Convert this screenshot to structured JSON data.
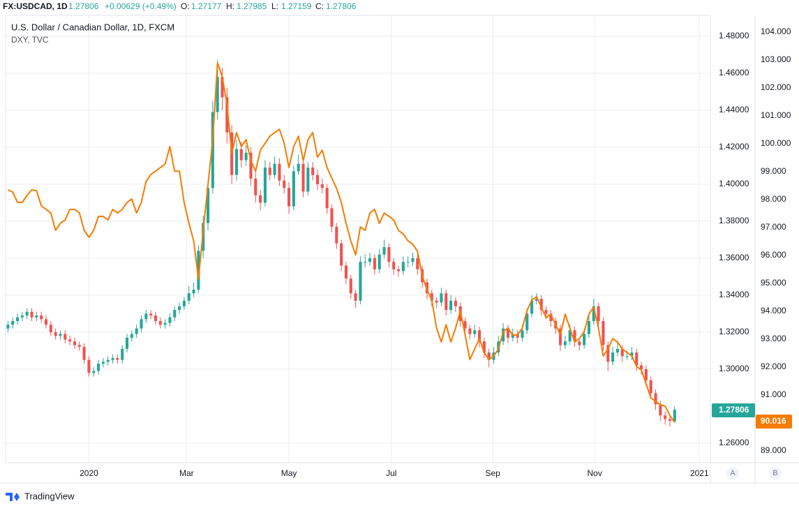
{
  "header": {
    "symbol": "FX:USDCAD, 1D",
    "change": "+0.00629 (+0.49%)",
    "ohlc_labels": [
      "O:",
      "H:",
      "L:",
      "C:"
    ]
  },
  "footer": {
    "brand": "TradingView",
    "scale_buttons": [
      "A",
      "B"
    ]
  },
  "chart_data": {
    "type": "candlestick",
    "title": "U.S. Dollar / Canadian Dollar, 1D, FXCM",
    "up_color": "#26a69a",
    "down_color": "#ef5350",
    "ohlc": [
      [
        1.322,
        1.326,
        1.32,
        1.324
      ],
      [
        1.324,
        1.328,
        1.322,
        1.326
      ],
      [
        1.326,
        1.33,
        1.324,
        1.328
      ],
      [
        1.328,
        1.331,
        1.326,
        1.329
      ],
      [
        1.329,
        1.333,
        1.327,
        1.331
      ],
      [
        1.331,
        1.333,
        1.326,
        1.328
      ],
      [
        1.328,
        1.331,
        1.326,
        1.329
      ],
      [
        1.329,
        1.331,
        1.325,
        1.327
      ],
      [
        1.327,
        1.329,
        1.322,
        1.324
      ],
      [
        1.324,
        1.326,
        1.318,
        1.32
      ],
      [
        1.32,
        1.322,
        1.316,
        1.318
      ],
      [
        1.318,
        1.321,
        1.316,
        1.319
      ],
      [
        1.319,
        1.321,
        1.314,
        1.316
      ],
      [
        1.316,
        1.318,
        1.313,
        1.315
      ],
      [
        1.315,
        1.317,
        1.311,
        1.313
      ],
      [
        1.313,
        1.315,
        1.31,
        1.312
      ],
      [
        1.312,
        1.314,
        1.303,
        1.305
      ],
      [
        1.305,
        1.307,
        1.296,
        1.298
      ],
      [
        1.298,
        1.301,
        1.296,
        1.299
      ],
      [
        1.299,
        1.305,
        1.297,
        1.303
      ],
      [
        1.303,
        1.306,
        1.301,
        1.304
      ],
      [
        1.304,
        1.307,
        1.302,
        1.305
      ],
      [
        1.305,
        1.308,
        1.303,
        1.306
      ],
      [
        1.306,
        1.308,
        1.303,
        1.305
      ],
      [
        1.305,
        1.313,
        1.303,
        1.311
      ],
      [
        1.311,
        1.319,
        1.309,
        1.317
      ],
      [
        1.317,
        1.321,
        1.315,
        1.319
      ],
      [
        1.319,
        1.324,
        1.317,
        1.322
      ],
      [
        1.322,
        1.329,
        1.32,
        1.327
      ],
      [
        1.327,
        1.332,
        1.325,
        1.33
      ],
      [
        1.33,
        1.332,
        1.327,
        1.329
      ],
      [
        1.329,
        1.331,
        1.324,
        1.326
      ],
      [
        1.326,
        1.328,
        1.322,
        1.324
      ],
      [
        1.324,
        1.327,
        1.322,
        1.325
      ],
      [
        1.325,
        1.33,
        1.323,
        1.328
      ],
      [
        1.328,
        1.334,
        1.326,
        1.332
      ],
      [
        1.332,
        1.336,
        1.33,
        1.334
      ],
      [
        1.334,
        1.339,
        1.332,
        1.337
      ],
      [
        1.337,
        1.345,
        1.335,
        1.341
      ],
      [
        1.341,
        1.347,
        1.339,
        1.343
      ],
      [
        1.343,
        1.367,
        1.341,
        1.364
      ],
      [
        1.364,
        1.383,
        1.36,
        1.379
      ],
      [
        1.379,
        1.402,
        1.375,
        1.398
      ],
      [
        1.398,
        1.445,
        1.395,
        1.439
      ],
      [
        1.439,
        1.467,
        1.435,
        1.458
      ],
      [
        1.458,
        1.463,
        1.44,
        1.447
      ],
      [
        1.447,
        1.452,
        1.422,
        1.428
      ],
      [
        1.428,
        1.432,
        1.4,
        1.405
      ],
      [
        1.405,
        1.424,
        1.402,
        1.419
      ],
      [
        1.419,
        1.423,
        1.409,
        1.413
      ],
      [
        1.413,
        1.421,
        1.41,
        1.417
      ],
      [
        1.417,
        1.42,
        1.399,
        1.403
      ],
      [
        1.403,
        1.407,
        1.39,
        1.394
      ],
      [
        1.394,
        1.397,
        1.386,
        1.39
      ],
      [
        1.39,
        1.413,
        1.388,
        1.409
      ],
      [
        1.409,
        1.412,
        1.402,
        1.405
      ],
      [
        1.405,
        1.415,
        1.403,
        1.411
      ],
      [
        1.411,
        1.414,
        1.399,
        1.402
      ],
      [
        1.402,
        1.405,
        1.395,
        1.398
      ],
      [
        1.398,
        1.401,
        1.384,
        1.388
      ],
      [
        1.388,
        1.41,
        1.386,
        1.407
      ],
      [
        1.407,
        1.416,
        1.405,
        1.411
      ],
      [
        1.411,
        1.414,
        1.393,
        1.396
      ],
      [
        1.396,
        1.412,
        1.394,
        1.409
      ],
      [
        1.409,
        1.412,
        1.402,
        1.405
      ],
      [
        1.405,
        1.408,
        1.397,
        1.4
      ],
      [
        1.4,
        1.403,
        1.395,
        1.398
      ],
      [
        1.398,
        1.4,
        1.384,
        1.387
      ],
      [
        1.387,
        1.389,
        1.374,
        1.377
      ],
      [
        1.377,
        1.379,
        1.365,
        1.368
      ],
      [
        1.368,
        1.37,
        1.353,
        1.356
      ],
      [
        1.356,
        1.358,
        1.346,
        1.349
      ],
      [
        1.349,
        1.351,
        1.338,
        1.341
      ],
      [
        1.341,
        1.343,
        1.333,
        1.337
      ],
      [
        1.337,
        1.361,
        1.335,
        1.358
      ],
      [
        1.358,
        1.362,
        1.355,
        1.358
      ],
      [
        1.358,
        1.363,
        1.356,
        1.36
      ],
      [
        1.36,
        1.362,
        1.351,
        1.354
      ],
      [
        1.354,
        1.365,
        1.352,
        1.362
      ],
      [
        1.362,
        1.37,
        1.36,
        1.366
      ],
      [
        1.366,
        1.368,
        1.355,
        1.358
      ],
      [
        1.358,
        1.36,
        1.351,
        1.354
      ],
      [
        1.354,
        1.356,
        1.35,
        1.353
      ],
      [
        1.353,
        1.361,
        1.351,
        1.358
      ],
      [
        1.358,
        1.361,
        1.355,
        1.358
      ],
      [
        1.358,
        1.363,
        1.356,
        1.36
      ],
      [
        1.36,
        1.362,
        1.351,
        1.354
      ],
      [
        1.354,
        1.356,
        1.344,
        1.347
      ],
      [
        1.347,
        1.349,
        1.338,
        1.341
      ],
      [
        1.341,
        1.343,
        1.334,
        1.337
      ],
      [
        1.337,
        1.339,
        1.333,
        1.336
      ],
      [
        1.336,
        1.344,
        1.334,
        1.341
      ],
      [
        1.341,
        1.343,
        1.329,
        1.332
      ],
      [
        1.332,
        1.34,
        1.33,
        1.337
      ],
      [
        1.337,
        1.339,
        1.331,
        1.334
      ],
      [
        1.334,
        1.336,
        1.323,
        1.326
      ],
      [
        1.326,
        1.328,
        1.319,
        1.322
      ],
      [
        1.322,
        1.324,
        1.316,
        1.319
      ],
      [
        1.319,
        1.324,
        1.317,
        1.321
      ],
      [
        1.321,
        1.323,
        1.312,
        1.315
      ],
      [
        1.315,
        1.317,
        1.306,
        1.309
      ],
      [
        1.309,
        1.311,
        1.301,
        1.305
      ],
      [
        1.305,
        1.312,
        1.303,
        1.309
      ],
      [
        1.309,
        1.318,
        1.307,
        1.315
      ],
      [
        1.315,
        1.325,
        1.313,
        1.322
      ],
      [
        1.322,
        1.324,
        1.314,
        1.317
      ],
      [
        1.317,
        1.322,
        1.315,
        1.319
      ],
      [
        1.319,
        1.321,
        1.314,
        1.317
      ],
      [
        1.317,
        1.324,
        1.315,
        1.321
      ],
      [
        1.321,
        1.333,
        1.319,
        1.33
      ],
      [
        1.33,
        1.34,
        1.328,
        1.337
      ],
      [
        1.337,
        1.341,
        1.335,
        1.338
      ],
      [
        1.338,
        1.34,
        1.329,
        1.332
      ],
      [
        1.332,
        1.334,
        1.327,
        1.33
      ],
      [
        1.33,
        1.332,
        1.323,
        1.326
      ],
      [
        1.326,
        1.328,
        1.319,
        1.322
      ],
      [
        1.322,
        1.324,
        1.31,
        1.313
      ],
      [
        1.313,
        1.318,
        1.311,
        1.315
      ],
      [
        1.315,
        1.324,
        1.313,
        1.321
      ],
      [
        1.321,
        1.323,
        1.312,
        1.315
      ],
      [
        1.315,
        1.317,
        1.31,
        1.313
      ],
      [
        1.313,
        1.322,
        1.311,
        1.319
      ],
      [
        1.319,
        1.329,
        1.317,
        1.326
      ],
      [
        1.326,
        1.338,
        1.324,
        1.334
      ],
      [
        1.334,
        1.336,
        1.323,
        1.326
      ],
      [
        1.326,
        1.328,
        1.31,
        1.313
      ],
      [
        1.313,
        1.315,
        1.299,
        1.304
      ],
      [
        1.304,
        1.312,
        1.302,
        1.309
      ],
      [
        1.309,
        1.314,
        1.307,
        1.311
      ],
      [
        1.311,
        1.313,
        1.304,
        1.307
      ],
      [
        1.307,
        1.31,
        1.305,
        1.307
      ],
      [
        1.307,
        1.312,
        1.305,
        1.309
      ],
      [
        1.309,
        1.311,
        1.299,
        1.302
      ],
      [
        1.302,
        1.304,
        1.297,
        1.3
      ],
      [
        1.3,
        1.302,
        1.291,
        1.294
      ],
      [
        1.294,
        1.296,
        1.284,
        1.287
      ],
      [
        1.287,
        1.289,
        1.278,
        1.281
      ],
      [
        1.281,
        1.283,
        1.272,
        1.275
      ],
      [
        1.275,
        1.277,
        1.27,
        1.273
      ],
      [
        1.273,
        1.275,
        1.269,
        1.272
      ],
      [
        1.27177,
        1.27985,
        1.27159,
        1.27806
      ]
    ],
    "overlay": {
      "name": "DXY, TVC",
      "color": "#f57c00",
      "axis": "y2",
      "values": [
        98.35,
        98.27,
        97.9,
        97.9,
        98.15,
        98.35,
        98.32,
        97.78,
        97.65,
        97.52,
        96.9,
        97.15,
        97.27,
        97.65,
        97.65,
        97.52,
        96.9,
        96.65,
        96.9,
        97.4,
        97.4,
        97.27,
        97.65,
        97.52,
        97.65,
        97.9,
        98.02,
        97.52,
        97.9,
        98.65,
        98.9,
        99.02,
        99.15,
        99.27,
        99.9,
        99.02,
        99.02,
        97.9,
        97.15,
        96.52,
        95.15,
        96.9,
        98.52,
        100.15,
        102.9,
        102.4,
        101.4,
        99.65,
        100.4,
        99.9,
        100.15,
        99.4,
        99.02,
        99.77,
        100.02,
        100.27,
        100.4,
        100.52,
        100.02,
        99.15,
        99.9,
        100.27,
        99.4,
        100.15,
        100.4,
        99.52,
        99.77,
        99.15,
        98.77,
        98.4,
        97.9,
        97.15,
        96.52,
        96.02,
        97.02,
        96.9,
        97.52,
        97.65,
        97.15,
        97.52,
        97.4,
        97.27,
        96.9,
        96.77,
        96.52,
        96.4,
        96.15,
        95.27,
        94.77,
        94.4,
        93.4,
        92.9,
        93.52,
        92.9,
        93.4,
        94.02,
        93.15,
        92.27,
        92.65,
        93.02,
        92.52,
        92.27,
        92.4,
        92.65,
        93.27,
        93.4,
        93.15,
        93.15,
        93.4,
        94.02,
        94.4,
        94.52,
        94.15,
        93.77,
        93.9,
        93.52,
        93.15,
        93.9,
        93.4,
        92.9,
        93.02,
        93.27,
        93.9,
        94.15,
        93.4,
        92.4,
        92.65,
        93.02,
        92.9,
        92.65,
        92.52,
        92.4,
        92.02,
        91.9,
        91.4,
        90.9,
        90.77,
        90.65,
        90.6,
        90.27,
        90.016
      ]
    },
    "xlim": [
      -0.5,
      147.5
    ],
    "xticks": [
      {
        "value": 17,
        "label": "2020"
      },
      {
        "value": 37.5,
        "label": "Mar"
      },
      {
        "value": 59,
        "label": "May"
      },
      {
        "value": 80.5,
        "label": "Jul"
      },
      {
        "value": 101.8,
        "label": "Sep"
      },
      {
        "value": 123.2,
        "label": "Nov"
      },
      {
        "value": 145.2,
        "label": "2021"
      }
    ],
    "ylim": [
      1.2494,
      1.4913
    ],
    "yticks": [
      {
        "value": 1.48,
        "label": "1.48000"
      },
      {
        "value": 1.46,
        "label": "1.46000"
      },
      {
        "value": 1.44,
        "label": "1.44000"
      },
      {
        "value": 1.42,
        "label": "1.42000"
      },
      {
        "value": 1.4,
        "label": "1.40000"
      },
      {
        "value": 1.38,
        "label": "1.38000"
      },
      {
        "value": 1.36,
        "label": "1.36000"
      },
      {
        "value": 1.34,
        "label": "1.34000"
      },
      {
        "value": 1.32,
        "label": "1.32000"
      },
      {
        "value": 1.3,
        "label": "1.30000"
      },
      {
        "value": 1.26,
        "label": "1.26000"
      }
    ],
    "y2lim": [
      88.575,
      104.6
    ],
    "y2ticks": [
      {
        "value": 104,
        "label": "104.000"
      },
      {
        "value": 103,
        "label": "103.000"
      },
      {
        "value": 102,
        "label": "102.000"
      },
      {
        "value": 101,
        "label": "101.000"
      },
      {
        "value": 100,
        "label": "100.000"
      },
      {
        "value": 99,
        "label": "99.000"
      },
      {
        "value": 98,
        "label": "98.000"
      },
      {
        "value": 97,
        "label": "97.000"
      },
      {
        "value": 96,
        "label": "96.000"
      },
      {
        "value": 95,
        "label": "95.000"
      },
      {
        "value": 94,
        "label": "94.000"
      },
      {
        "value": 93,
        "label": "93.000"
      },
      {
        "value": 92,
        "label": "92.000"
      },
      {
        "value": 91,
        "label": "91.000"
      },
      {
        "value": 89,
        "label": "89.000"
      }
    ],
    "grid": true
  }
}
